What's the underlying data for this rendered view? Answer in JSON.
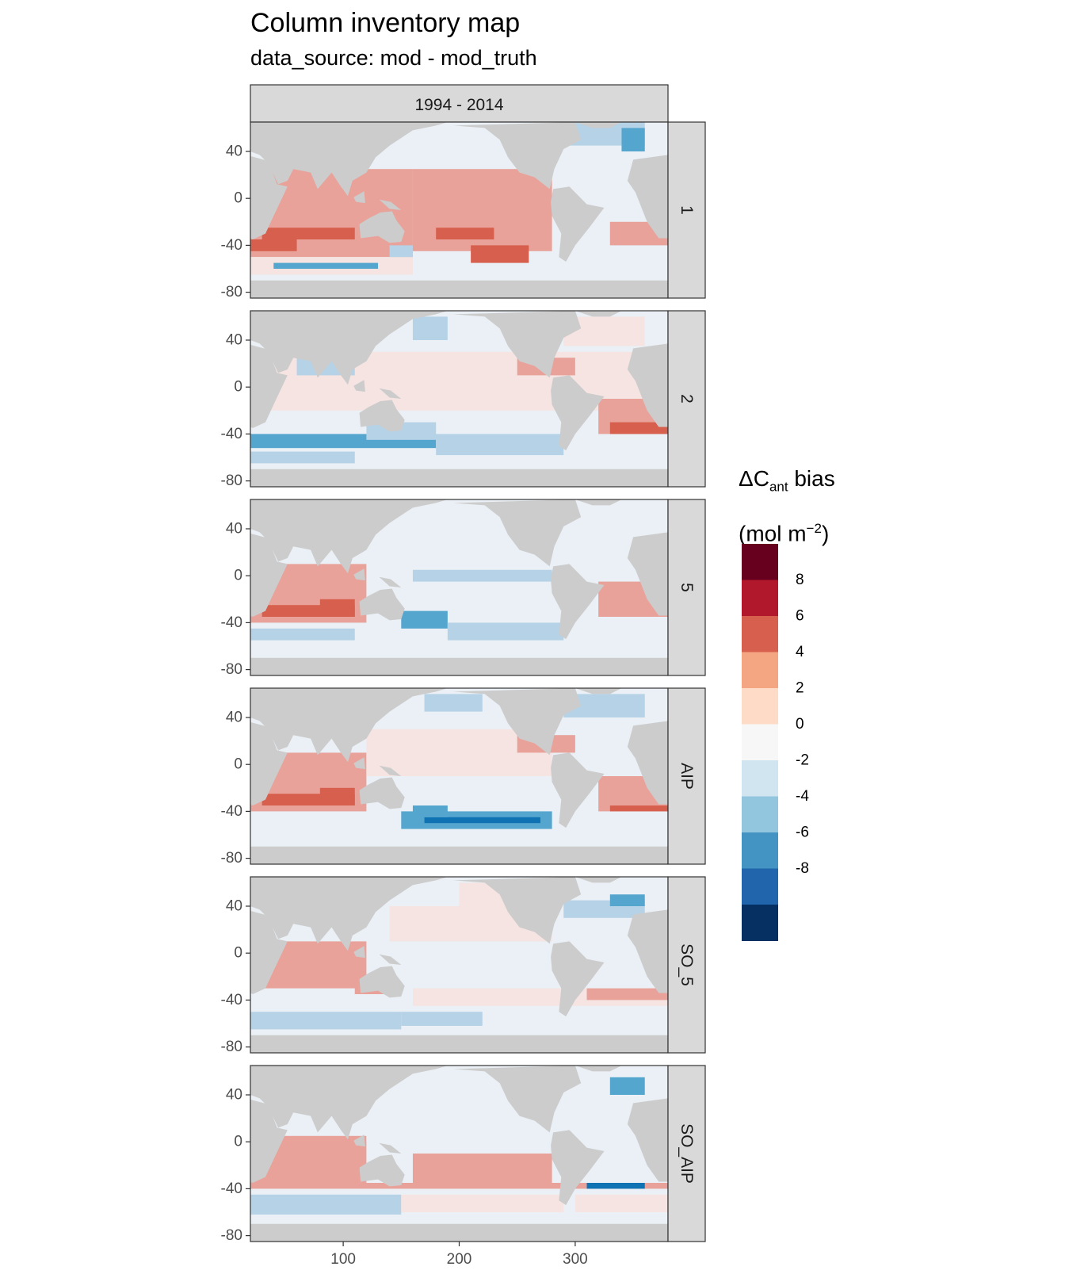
{
  "title": "Column inventory map",
  "subtitle": "data_source: mod - mod_truth",
  "chart_data": {
    "type": "heatmap",
    "title": "Column inventory map",
    "subtitle": "data_source: mod - mod_truth",
    "facet_column": "1994 - 2014",
    "facet_rows": [
      "1",
      "2",
      "5",
      "AIP",
      "SO_5",
      "SO_AIP"
    ],
    "x_ticks": [
      100,
      200,
      300
    ],
    "y_ticks": [
      40,
      0,
      -40,
      -80
    ],
    "xlim": [
      20,
      380
    ],
    "ylim": [
      -85,
      65
    ],
    "legend": {
      "title_main": "ΔC",
      "title_sub": "ant",
      "title_tail": " bias",
      "units_prefix": "(mol m",
      "units_sup": "−2",
      "units_suffix": ")",
      "breaks": [
        "8",
        "6",
        "4",
        "2",
        "0",
        "-2",
        "-4",
        "-6",
        "-8"
      ],
      "colors": [
        "#67001f",
        "#b2182b",
        "#d6604d",
        "#f4a582",
        "#fddbc7",
        "#f7f7f7",
        "#d1e5f0",
        "#92c5de",
        "#4393c3",
        "#2166ac",
        "#053061"
      ]
    },
    "panel_colors": {
      "land": "#cccccc",
      "strip": "#d9d9d9"
    }
  }
}
